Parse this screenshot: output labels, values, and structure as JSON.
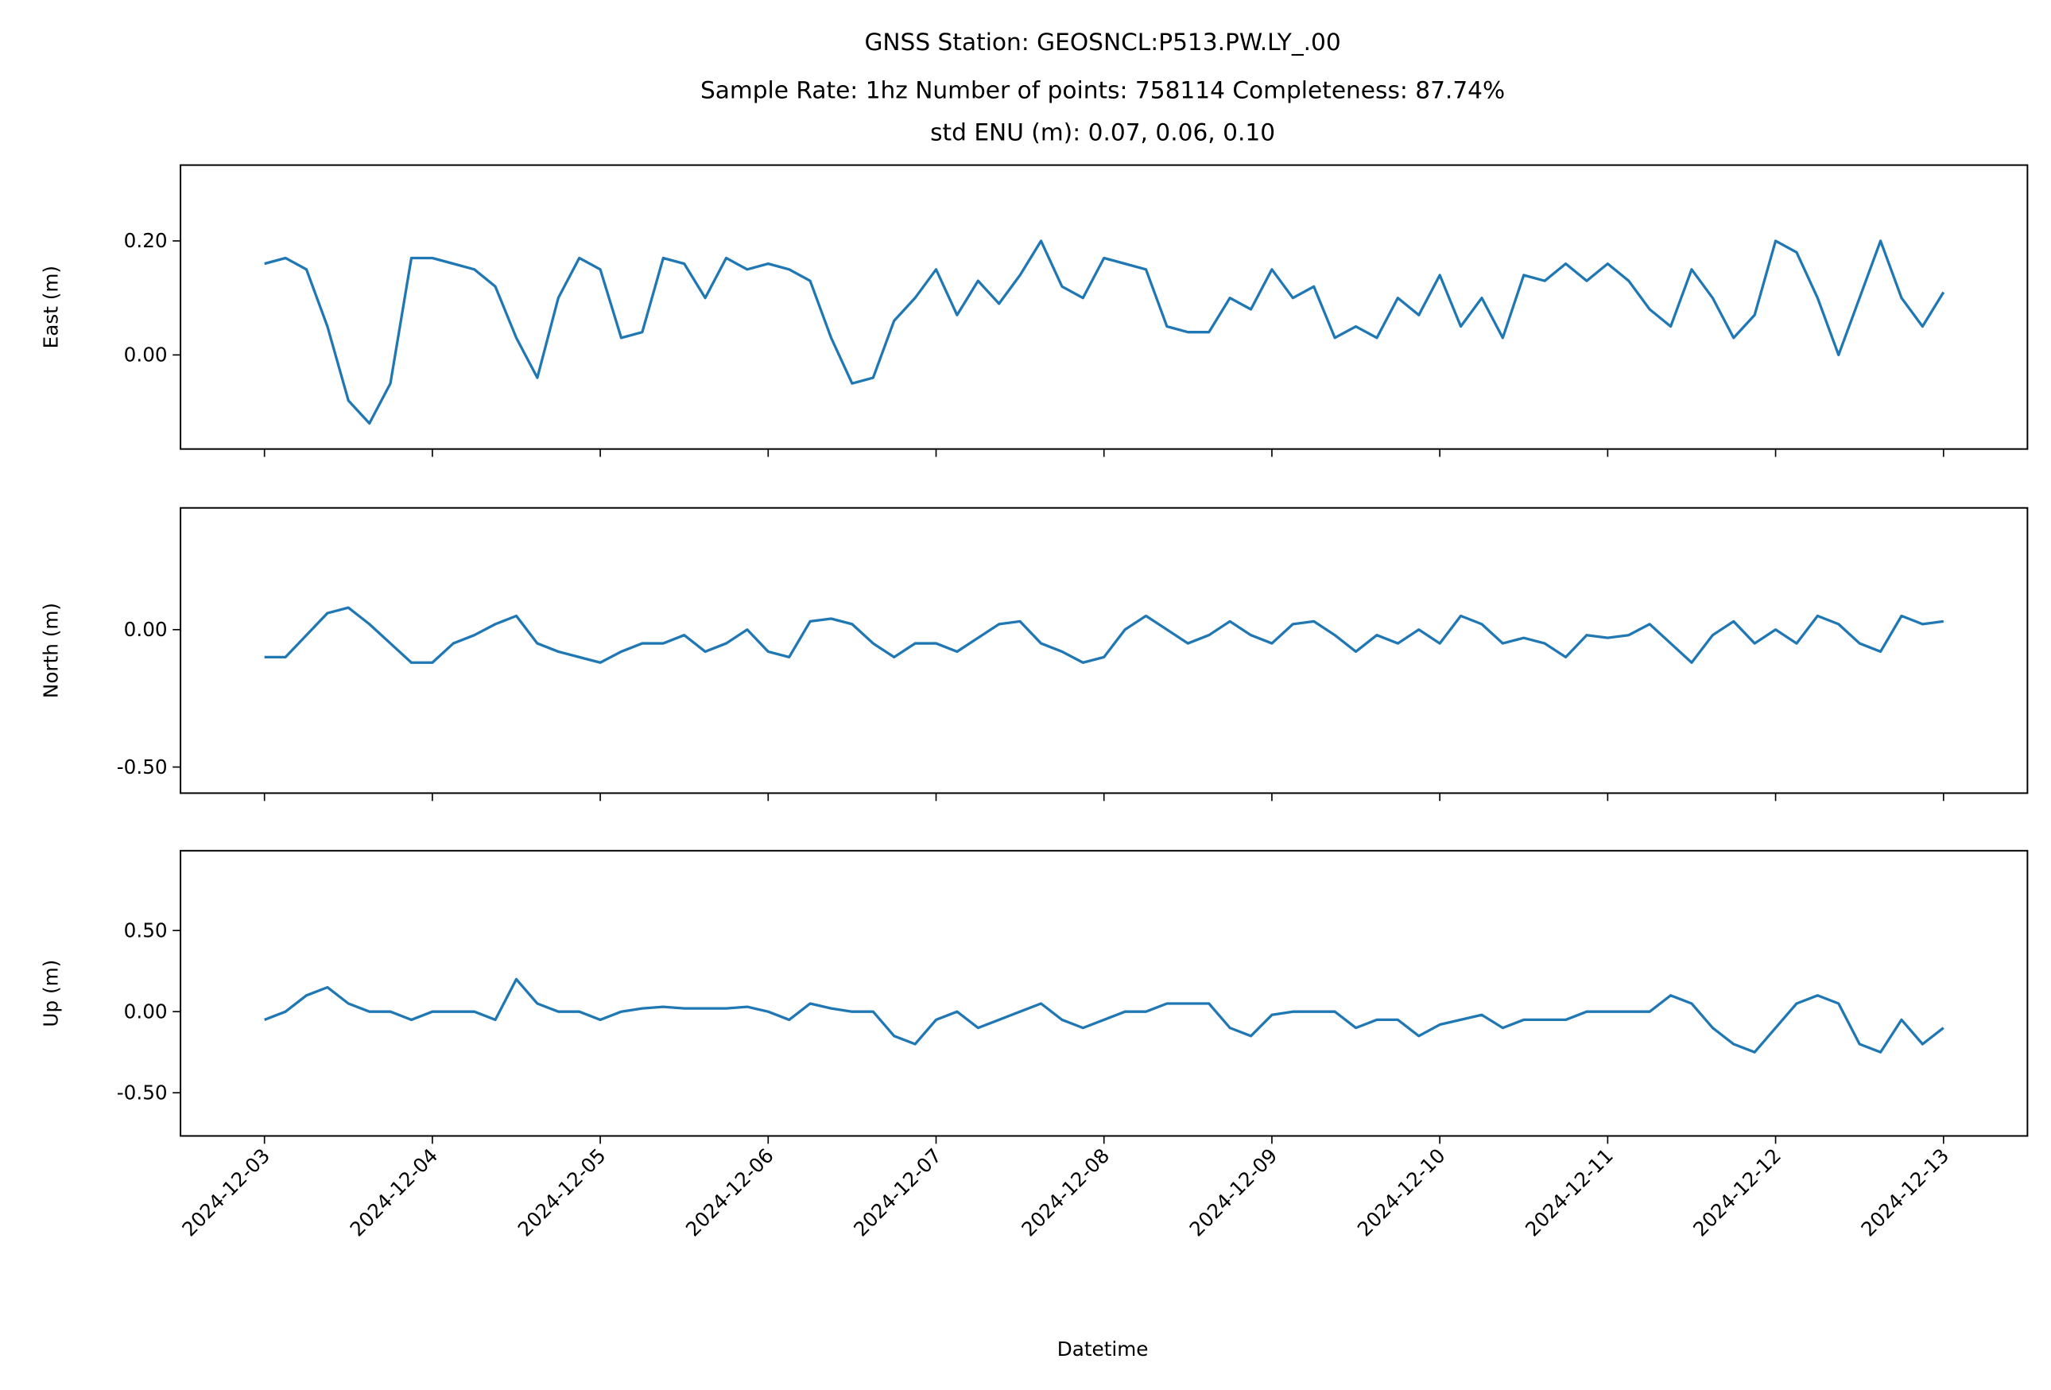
{
  "chart_data": {
    "type": "line",
    "title_lines": [
      "GNSS Station: GEOSNCL:P513.PW.LY_.00",
      "Sample Rate: 1hz   Number of points: 758114    Completeness:  87.74%",
      "std ENU (m):  0.07, 0.06, 0.10"
    ],
    "xlabel": "Datetime",
    "xlim": [
      "2024-12-02T12:00",
      "2024-12-13T12:00"
    ],
    "xticks": [
      "2024-12-03",
      "2024-12-04",
      "2024-12-05",
      "2024-12-06",
      "2024-12-07",
      "2024-12-08",
      "2024-12-09",
      "2024-12-10",
      "2024-12-11",
      "2024-12-12",
      "2024-12-13"
    ],
    "x": [
      "2024-12-03T00:00",
      "2024-12-03T03:00",
      "2024-12-03T06:00",
      "2024-12-03T09:00",
      "2024-12-03T12:00",
      "2024-12-03T15:00",
      "2024-12-03T18:00",
      "2024-12-03T21:00",
      "2024-12-04T00:00",
      "2024-12-04T03:00",
      "2024-12-04T06:00",
      "2024-12-04T09:00",
      "2024-12-04T12:00",
      "2024-12-04T15:00",
      "2024-12-04T18:00",
      "2024-12-04T21:00",
      "2024-12-05T00:00",
      "2024-12-05T03:00",
      "2024-12-05T06:00",
      "2024-12-05T09:00",
      "2024-12-05T12:00",
      "2024-12-05T15:00",
      "2024-12-05T18:00",
      "2024-12-05T21:00",
      "2024-12-06T00:00",
      "2024-12-06T03:00",
      "2024-12-06T06:00",
      "2024-12-06T09:00",
      "2024-12-06T12:00",
      "2024-12-06T15:00",
      "2024-12-06T18:00",
      "2024-12-06T21:00",
      "2024-12-07T00:00",
      "2024-12-07T03:00",
      "2024-12-07T06:00",
      "2024-12-07T09:00",
      "2024-12-07T12:00",
      "2024-12-07T15:00",
      "2024-12-07T18:00",
      "2024-12-07T21:00",
      "2024-12-08T00:00",
      "2024-12-08T03:00",
      "2024-12-08T06:00",
      "2024-12-08T09:00",
      "2024-12-08T12:00",
      "2024-12-08T15:00",
      "2024-12-08T18:00",
      "2024-12-08T21:00",
      "2024-12-09T00:00",
      "2024-12-09T03:00",
      "2024-12-09T06:00",
      "2024-12-09T09:00",
      "2024-12-09T12:00",
      "2024-12-09T15:00",
      "2024-12-09T18:00",
      "2024-12-09T21:00",
      "2024-12-10T00:00",
      "2024-12-10T03:00",
      "2024-12-10T06:00",
      "2024-12-10T09:00",
      "2024-12-10T12:00",
      "2024-12-10T15:00",
      "2024-12-10T18:00",
      "2024-12-10T21:00",
      "2024-12-11T00:00",
      "2024-12-11T03:00",
      "2024-12-11T06:00",
      "2024-12-11T09:00",
      "2024-12-11T12:00",
      "2024-12-11T15:00",
      "2024-12-11T18:00",
      "2024-12-11T21:00",
      "2024-12-12T00:00",
      "2024-12-12T03:00",
      "2024-12-12T06:00",
      "2024-12-12T09:00",
      "2024-12-12T12:00",
      "2024-12-12T15:00",
      "2024-12-12T18:00",
      "2024-12-12T21:00",
      "2024-12-13T00:00"
    ],
    "panels": [
      {
        "ylabel": "East (m)",
        "color": "#1f77b4",
        "ylim": [
          -0.165,
          0.333
        ],
        "yticks": [
          {
            "value": 0,
            "label": "0.00"
          },
          {
            "value": 0.2,
            "label": "0.20"
          }
        ],
        "values": [
          0.16,
          0.17,
          0.15,
          0.05,
          -0.08,
          -0.12,
          -0.05,
          0.17,
          0.17,
          0.16,
          0.15,
          0.12,
          0.03,
          -0.04,
          0.1,
          0.17,
          0.15,
          0.03,
          0.04,
          0.17,
          0.16,
          0.1,
          0.17,
          0.15,
          0.16,
          0.15,
          0.13,
          0.03,
          -0.05,
          -0.04,
          0.06,
          0.1,
          0.15,
          0.07,
          0.13,
          0.09,
          0.14,
          0.2,
          0.12,
          0.1,
          0.17,
          0.16,
          0.15,
          0.05,
          0.04,
          0.04,
          0.1,
          0.08,
          0.15,
          0.1,
          0.12,
          0.03,
          0.05,
          0.03,
          0.1,
          0.07,
          0.14,
          0.05,
          0.1,
          0.03,
          0.14,
          0.13,
          0.16,
          0.13,
          0.16,
          0.13,
          0.08,
          0.05,
          0.15,
          0.1,
          0.03,
          0.07,
          0.2,
          0.18,
          0.1,
          0.0,
          0.1,
          0.2,
          0.1,
          0.05,
          0.11
        ]
      },
      {
        "ylabel": "North (m)",
        "color": "#1f77b4",
        "ylim": [
          -0.595,
          0.443
        ],
        "yticks": [
          {
            "value": -0.5,
            "label": "-0.50"
          },
          {
            "value": 0,
            "label": "0.00"
          }
        ],
        "values": [
          -0.1,
          -0.1,
          -0.02,
          0.06,
          0.08,
          0.02,
          -0.05,
          -0.12,
          -0.12,
          -0.05,
          -0.02,
          0.02,
          0.05,
          -0.05,
          -0.08,
          -0.1,
          -0.12,
          -0.08,
          -0.05,
          -0.05,
          -0.02,
          -0.08,
          -0.05,
          0.0,
          -0.08,
          -0.1,
          0.03,
          0.04,
          0.02,
          -0.05,
          -0.1,
          -0.05,
          -0.05,
          -0.08,
          -0.03,
          0.02,
          0.03,
          -0.05,
          -0.08,
          -0.12,
          -0.1,
          0.0,
          0.05,
          0.0,
          -0.05,
          -0.02,
          0.03,
          -0.02,
          -0.05,
          0.02,
          0.03,
          -0.02,
          -0.08,
          -0.02,
          -0.05,
          0.0,
          -0.05,
          0.05,
          0.02,
          -0.05,
          -0.03,
          -0.05,
          -0.1,
          -0.02,
          -0.03,
          -0.02,
          0.02,
          -0.05,
          -0.12,
          -0.02,
          0.03,
          -0.05,
          0.0,
          -0.05,
          0.05,
          0.02,
          -0.05,
          -0.08,
          0.05,
          0.02,
          0.03
        ]
      },
      {
        "ylabel": "Up (m)",
        "color": "#1f77b4",
        "ylim": [
          -0.766,
          0.992
        ],
        "yticks": [
          {
            "value": -0.5,
            "label": "-0.50"
          },
          {
            "value": 0,
            "label": "0.00"
          },
          {
            "value": 0.5,
            "label": "0.50"
          }
        ],
        "values": [
          -0.05,
          0.0,
          0.1,
          0.15,
          0.05,
          0.0,
          0.0,
          -0.05,
          0.0,
          0.0,
          0.0,
          -0.05,
          0.2,
          0.05,
          0.0,
          0.0,
          -0.05,
          0.0,
          0.02,
          0.03,
          0.02,
          0.02,
          0.02,
          0.03,
          0.0,
          -0.05,
          0.05,
          0.02,
          0.0,
          0.0,
          -0.15,
          -0.2,
          -0.05,
          0.0,
          -0.1,
          -0.05,
          0.0,
          0.05,
          -0.05,
          -0.1,
          -0.05,
          0.0,
          0.0,
          0.05,
          0.05,
          0.05,
          -0.1,
          -0.15,
          -0.02,
          0.0,
          0.0,
          0.0,
          -0.1,
          -0.05,
          -0.05,
          -0.15,
          -0.08,
          -0.05,
          -0.02,
          -0.1,
          -0.05,
          -0.05,
          -0.05,
          0.0,
          0.0,
          0.0,
          0.0,
          0.1,
          0.05,
          -0.1,
          -0.2,
          -0.25,
          -0.1,
          0.05,
          0.1,
          0.05,
          -0.2,
          -0.25,
          -0.05,
          -0.2,
          -0.1
        ]
      }
    ]
  }
}
